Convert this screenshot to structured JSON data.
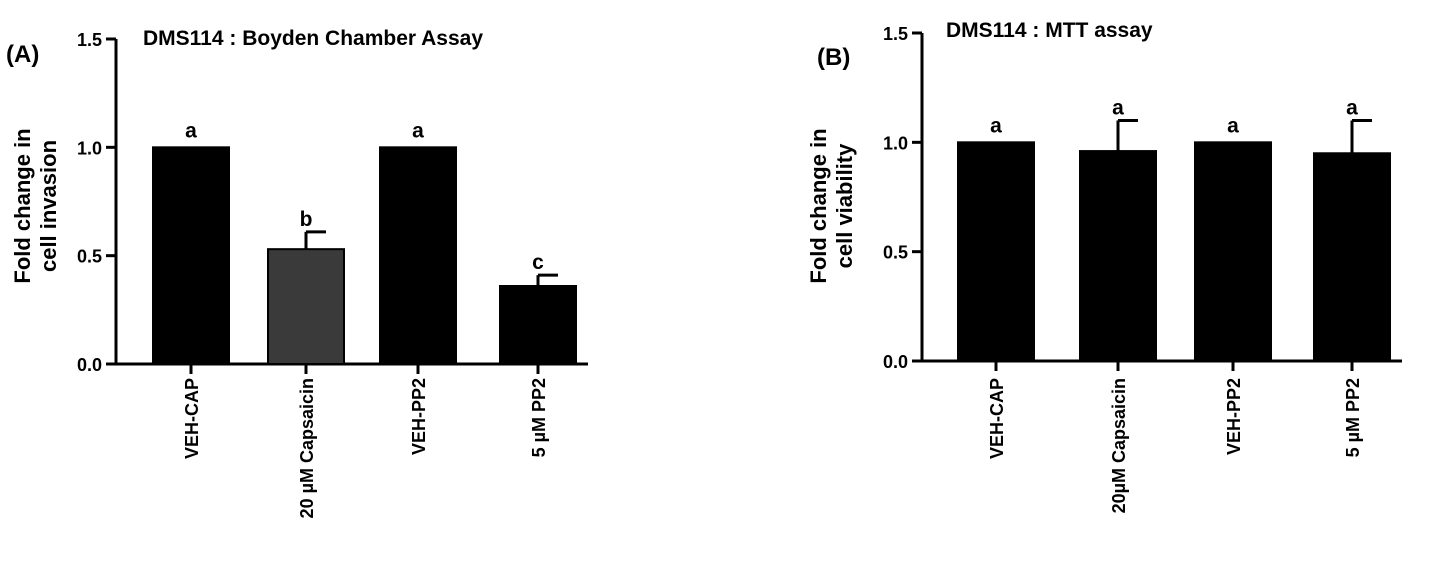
{
  "chart_data": [
    {
      "type": "bar",
      "panel_label": "(A)",
      "title": "DMS114 : Boyden Chamber Assay",
      "ylabel": "Fold change in cell invasion",
      "ylabel_lines": [
        "Fold change in",
        "cell invasion"
      ],
      "xlabel": "",
      "categories": [
        "VEH-CAP",
        "20 µM Capsaicin",
        "VEH-PP2",
        "5 µM PP2"
      ],
      "values": [
        1.0,
        0.53,
        1.0,
        0.36
      ],
      "errors": [
        0,
        0.08,
        0,
        0.05
      ],
      "significance": [
        "a",
        "b",
        "a",
        "c"
      ],
      "bar_colors": [
        "#000000",
        "#3a3a3a",
        "#000000",
        "#000000"
      ],
      "ylim": [
        0,
        1.5
      ],
      "yticks": [
        "0.0",
        "0.5",
        "1.0",
        "1.5"
      ],
      "grid": false,
      "legend": "none"
    },
    {
      "type": "bar",
      "panel_label": "(B)",
      "title": "DMS114 : MTT assay",
      "ylabel": "Fold change in cell viability",
      "ylabel_lines": [
        "Fold change in",
        "cell viability"
      ],
      "xlabel": "",
      "categories": [
        "VEH-CAP",
        "20µM Capsaicin",
        "VEH-PP2",
        "5 µM PP2"
      ],
      "values": [
        1.0,
        0.96,
        1.0,
        0.95
      ],
      "errors": [
        0,
        0.14,
        0,
        0.15
      ],
      "significance": [
        "a",
        "a",
        "a",
        "a"
      ],
      "bar_colors": [
        "#000000",
        "#000000",
        "#000000",
        "#000000"
      ],
      "ylim": [
        0,
        1.5
      ],
      "yticks": [
        "0.0",
        "0.5",
        "1.0",
        "1.5"
      ],
      "grid": false,
      "legend": "none"
    }
  ]
}
